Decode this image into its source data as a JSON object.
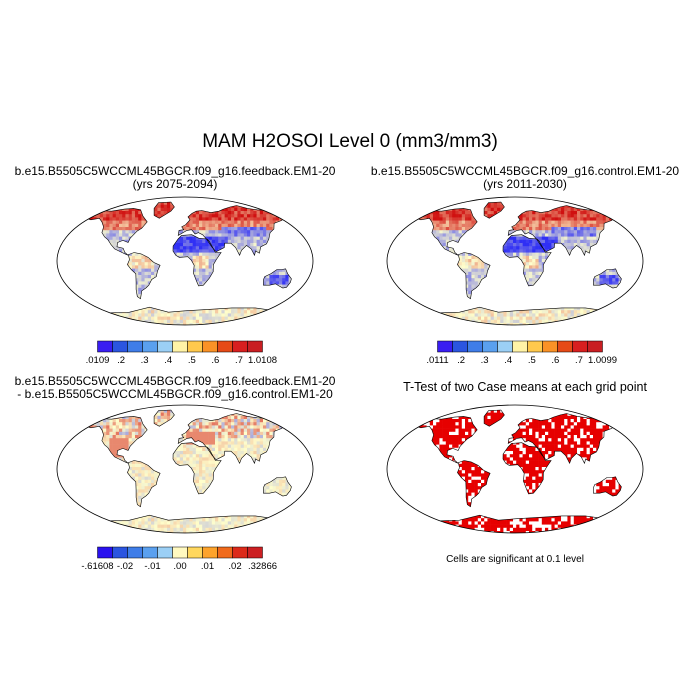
{
  "figure": {
    "title": "MAM H2OSOI Level 0 (mm3/mm3)"
  },
  "colors": {
    "low": "#2f2ff5",
    "mid": "#ffffcc",
    "high": "#d01010",
    "land_red": "#e60000",
    "outline": "#000000"
  },
  "chart_data": [
    {
      "type": "heatmap",
      "id": "feedback",
      "title_line1": "b.e15.B5505C5WCCML45BGCR.f09_g16.feedback.EM1-20",
      "title_line2": "(yrs 2075-2094)",
      "colorbar": {
        "colors": [
          "#3a1ef2",
          "#2b55e0",
          "#3f7de8",
          "#5aa0ef",
          "#9bcff5",
          "#fff3a6",
          "#ffc94d",
          "#fb9226",
          "#e64a17",
          "#d81f1f",
          "#c91e22"
        ],
        "tick_labels": [
          ".0109",
          ".2",
          ".3",
          ".4",
          ".5",
          ".6",
          ".7",
          "1.0108"
        ]
      }
    },
    {
      "type": "heatmap",
      "id": "control",
      "title_line1": "b.e15.B5505C5WCCML45BGCR.f09_g16.control.EM1-20",
      "title_line2": "(yrs 2011-2030)",
      "colorbar": {
        "colors": [
          "#3a1ef2",
          "#2b55e0",
          "#3f7de8",
          "#5aa0ef",
          "#9bcff5",
          "#fff3a6",
          "#ffc94d",
          "#fb9226",
          "#e64a17",
          "#d81f1f",
          "#c91e22"
        ],
        "tick_labels": [
          ".0111",
          ".2",
          ".3",
          ".4",
          ".5",
          ".6",
          ".7",
          "1.0099"
        ]
      }
    },
    {
      "type": "heatmap",
      "id": "difference",
      "title_line1": "b.e15.B5505C5WCCML45BGCR.f09_g16.feedback.EM1-20",
      "title_line2": "- b.e15.B5505C5WCCML45BGCR.f09_g16.control.EM1-20",
      "colorbar": {
        "colors": [
          "#2a12ef",
          "#2b55e0",
          "#3f7de8",
          "#5aa0ef",
          "#9bcff5",
          "#fff9c0",
          "#ffd75e",
          "#fda32c",
          "#f06a1b",
          "#dc2a1a",
          "#cc1f22"
        ],
        "tick_labels": [
          "-.61608",
          "-.02",
          "-.01",
          ".00",
          ".01",
          ".02",
          ".32866"
        ]
      }
    },
    {
      "type": "heatmap",
      "id": "ttest",
      "title_line1": "T-Test of two Case means at each grid point",
      "note": "Cells are significant at 0.1 level"
    }
  ]
}
